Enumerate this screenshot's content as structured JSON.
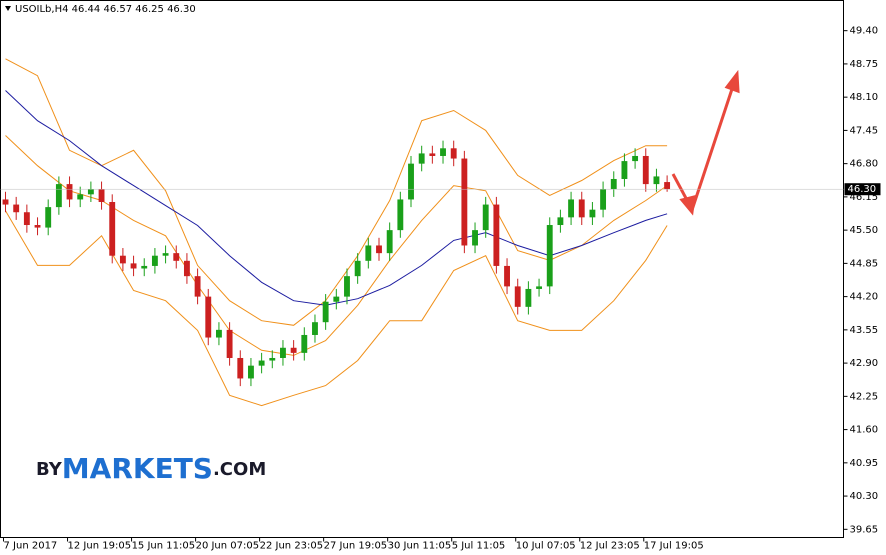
{
  "chart_data": {
    "type": "candlestick",
    "header": "USOILb,H4  46.44 46.57 46.25 46.30",
    "logo": [
      "BY",
      "MARKETS",
      ".COM"
    ],
    "categories": [
      "7 Jun 2017",
      null,
      null,
      null,
      null,
      null,
      "12 Jun 19:05",
      null,
      null,
      null,
      null,
      null,
      "15 Jun 11:05",
      null,
      null,
      null,
      null,
      null,
      "20 Jun 07:05",
      null,
      null,
      null,
      null,
      null,
      "22 Jun 23:05",
      null,
      null,
      null,
      null,
      null,
      "27 Jun 19:05",
      null,
      null,
      null,
      null,
      null,
      "30 Jun 11:05",
      null,
      null,
      null,
      null,
      null,
      "5 Jul 11:05",
      null,
      null,
      null,
      null,
      null,
      "10 Jul 07:05",
      null,
      null,
      null,
      null,
      null,
      "12 Jul 23:05",
      null,
      null,
      null,
      null,
      null,
      "17 Jul 19:05",
      null,
      null
    ],
    "open": [
      46.1,
      46.0,
      45.85,
      45.6,
      45.55,
      45.95,
      46.4,
      46.1,
      46.2,
      46.3,
      46.05,
      45.0,
      44.85,
      44.75,
      44.8,
      45.0,
      45.05,
      44.9,
      44.6,
      44.2,
      43.4,
      43.55,
      43.0,
      42.6,
      42.85,
      42.95,
      43.0,
      43.2,
      43.1,
      43.45,
      43.7,
      44.1,
      44.2,
      44.6,
      44.9,
      45.2,
      45.05,
      45.5,
      46.1,
      46.8,
      47.0,
      46.95,
      47.1,
      46.9,
      45.2,
      45.5,
      46.0,
      44.8,
      44.4,
      44.0,
      44.35,
      44.4,
      45.6,
      45.75,
      46.1,
      45.75,
      45.9,
      46.3,
      46.5,
      46.85,
      46.95,
      46.4,
      46.44
    ],
    "high": [
      46.25,
      46.15,
      46.0,
      45.75,
      46.1,
      46.55,
      46.55,
      46.35,
      46.45,
      46.45,
      46.2,
      45.15,
      45.0,
      44.95,
      45.15,
      45.2,
      45.2,
      45.05,
      44.75,
      44.35,
      43.7,
      43.7,
      43.15,
      43.0,
      43.1,
      43.15,
      43.35,
      43.35,
      43.6,
      43.85,
      44.25,
      44.35,
      44.75,
      45.05,
      45.35,
      45.35,
      45.65,
      46.25,
      46.95,
      47.15,
      47.15,
      47.25,
      47.25,
      47.05,
      45.65,
      46.15,
      46.15,
      44.95,
      44.55,
      44.5,
      44.55,
      45.75,
      45.9,
      46.25,
      46.25,
      46.05,
      46.45,
      46.65,
      47.0,
      47.1,
      47.1,
      46.7,
      46.57
    ],
    "low": [
      45.85,
      45.7,
      45.45,
      45.4,
      45.4,
      45.8,
      45.95,
      45.95,
      46.05,
      45.9,
      44.85,
      44.7,
      44.6,
      44.6,
      44.65,
      44.85,
      44.75,
      44.45,
      44.05,
      43.25,
      43.25,
      42.85,
      42.45,
      42.45,
      42.7,
      42.8,
      42.85,
      42.95,
      42.95,
      43.3,
      43.55,
      43.95,
      44.05,
      44.45,
      44.75,
      44.9,
      44.9,
      45.35,
      45.95,
      46.65,
      46.8,
      46.8,
      46.75,
      45.05,
      45.05,
      45.35,
      44.65,
      44.25,
      43.85,
      43.85,
      44.2,
      44.25,
      45.45,
      45.6,
      45.6,
      45.6,
      45.75,
      46.15,
      46.35,
      46.7,
      46.25,
      46.25,
      46.25
    ],
    "close": [
      46.0,
      45.85,
      45.6,
      45.55,
      45.95,
      46.4,
      46.1,
      46.2,
      46.3,
      46.05,
      45.0,
      44.85,
      44.75,
      44.8,
      45.0,
      45.05,
      44.9,
      44.6,
      44.2,
      43.4,
      43.55,
      43.0,
      42.6,
      42.85,
      42.95,
      43.0,
      43.2,
      43.1,
      43.45,
      43.7,
      44.1,
      44.2,
      44.6,
      44.9,
      45.2,
      45.05,
      45.5,
      46.1,
      46.8,
      47.0,
      46.95,
      47.1,
      46.9,
      45.2,
      45.5,
      46.0,
      44.8,
      44.4,
      44.0,
      44.35,
      44.4,
      45.6,
      45.75,
      46.1,
      45.75,
      45.9,
      46.3,
      46.5,
      46.85,
      46.95,
      46.4,
      46.55,
      46.3
    ],
    "up_color": "#1aa01a",
    "down_color": "#cc2020",
    "indicators": [
      {
        "color": "#f0901a",
        "x": [
          0,
          3,
          6,
          9,
          12,
          15,
          18,
          21,
          24,
          27,
          30,
          33,
          36,
          39,
          42,
          45,
          48,
          51,
          54,
          57,
          60,
          62
        ],
        "values": [
          48.85,
          48.52,
          47.06,
          46.76,
          47.06,
          46.27,
          44.81,
          44.12,
          43.73,
          43.64,
          44.12,
          45.0,
          46.08,
          47.64,
          47.84,
          47.45,
          46.57,
          46.18,
          46.47,
          46.86,
          47.15,
          47.15
        ]
      },
      {
        "color": "#f0901a",
        "x": [
          0,
          3,
          6,
          9,
          12,
          15,
          18,
          21,
          24,
          27,
          30,
          33,
          36,
          39,
          42,
          45,
          48,
          51,
          54,
          57,
          60,
          62
        ],
        "values": [
          47.35,
          46.76,
          46.27,
          46.08,
          45.69,
          45.39,
          44.42,
          43.54,
          43.15,
          43.05,
          43.34,
          44.03,
          44.91,
          45.69,
          46.37,
          46.27,
          45.1,
          44.91,
          45.2,
          45.69,
          46.08,
          46.37
        ]
      },
      {
        "color": "#f0901a",
        "x": [
          0,
          3,
          6,
          9,
          12,
          15,
          18,
          21,
          24,
          27,
          30,
          33,
          36,
          39,
          42,
          45,
          48,
          51,
          54,
          57,
          60,
          62
        ],
        "values": [
          45.88,
          44.81,
          44.81,
          45.39,
          44.32,
          44.12,
          43.54,
          42.27,
          42.07,
          42.27,
          42.46,
          42.95,
          43.73,
          43.73,
          44.71,
          45.0,
          43.73,
          43.54,
          43.54,
          44.12,
          44.91,
          45.59
        ]
      },
      {
        "color": "#1c1ca0",
        "x": [
          0,
          3,
          6,
          9,
          12,
          15,
          18,
          21,
          24,
          27,
          30,
          33,
          36,
          39,
          42,
          45,
          48,
          51,
          54,
          57,
          60,
          62
        ],
        "values": [
          48.23,
          47.64,
          47.25,
          46.76,
          46.37,
          45.98,
          45.59,
          45.0,
          44.48,
          44.12,
          44.03,
          44.16,
          44.42,
          44.81,
          45.3,
          45.45,
          45.2,
          45.0,
          45.2,
          45.45,
          45.69,
          45.82
        ]
      }
    ],
    "last_price": {
      "value": 46.3,
      "label": "46.30"
    },
    "xlim": [
      -0.47,
      78.53
    ],
    "ylim": [
      39.49,
      49.99
    ],
    "yticks": [
      {
        "value": 49.4,
        "label": "49.40"
      },
      48.75,
      {
        "value": 48.1,
        "label": "48.10"
      },
      47.45,
      {
        "value": 46.8,
        "label": "46.80"
      },
      46.15,
      {
        "value": 45.5,
        "label": "45.50"
      },
      44.85,
      {
        "value": 44.2,
        "label": "44.20"
      },
      43.55,
      {
        "value": 42.9,
        "label": "42.90"
      },
      42.25,
      {
        "value": 41.6,
        "label": "41.60"
      },
      40.95,
      {
        "value": 40.3,
        "label": "40.30"
      },
      39.65
    ]
  }
}
